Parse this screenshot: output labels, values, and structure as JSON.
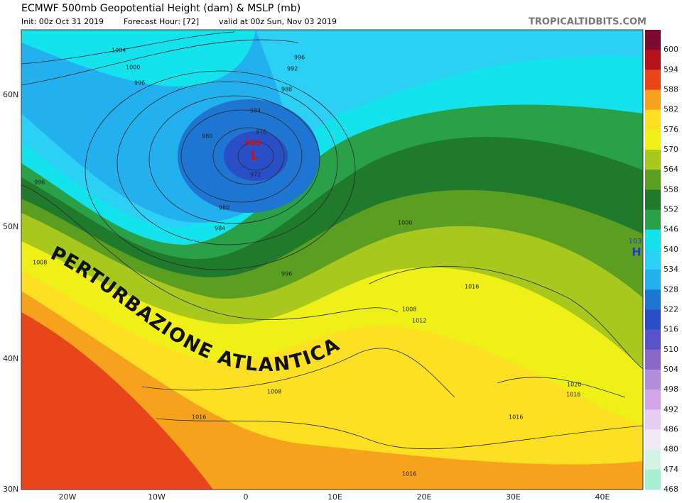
{
  "header": {
    "title": "ECMWF 500mb Geopotential Height (dam) & MSLP (mb)",
    "init": "Init: 00z Oct 31 2019",
    "forecast_hour": "Forecast Hour: [72]",
    "valid": "valid at 00z Sun, Nov 03 2019",
    "site": "TROPICALTIDBITS.COM"
  },
  "latitude_labels": [
    "60N",
    "50N",
    "40N",
    "30N"
  ],
  "longitude_labels": [
    "20W",
    "10W",
    "0",
    "10E",
    "20E",
    "30E",
    "40E"
  ],
  "annotation": "PERTURBAZIONE ATLANTICA",
  "low": {
    "pressure": "968",
    "symbol": "L"
  },
  "high": {
    "pressure": "103",
    "symbol": "H"
  },
  "isobar_labels": [
    "1004",
    "1000",
    "996",
    "996",
    "992",
    "988",
    "984",
    "980",
    "976",
    "972",
    "980",
    "984",
    "996",
    "1008",
    "996",
    "1000",
    "1008",
    "1016",
    "1012",
    "1008",
    "1016",
    "1020",
    "1016",
    "1016",
    "1016"
  ],
  "legend": [
    {
      "value": 600,
      "color": "#7d0a30"
    },
    {
      "value": 594,
      "color": "#b4121c"
    },
    {
      "value": 588,
      "color": "#e8461a"
    },
    {
      "value": 582,
      "color": "#f7a21c"
    },
    {
      "value": 576,
      "color": "#fde024"
    },
    {
      "value": 570,
      "color": "#eef018"
    },
    {
      "value": 564,
      "color": "#a8c81e"
    },
    {
      "value": 558,
      "color": "#5c9e22"
    },
    {
      "value": 552,
      "color": "#1f7a2c"
    },
    {
      "value": 546,
      "color": "#2aa048"
    },
    {
      "value": 540,
      "color": "#14e2ec"
    },
    {
      "value": 534,
      "color": "#2cd0f4"
    },
    {
      "value": 528,
      "color": "#22b0ee"
    },
    {
      "value": 522,
      "color": "#1e76d2"
    },
    {
      "value": 516,
      "color": "#2a4ec6"
    },
    {
      "value": 510,
      "color": "#5a52c8"
    },
    {
      "value": 504,
      "color": "#8a68c8"
    },
    {
      "value": 498,
      "color": "#b48cdc"
    },
    {
      "value": 492,
      "color": "#d4a4e8"
    },
    {
      "value": 486,
      "color": "#e8cef2"
    },
    {
      "value": 480,
      "color": "#f2e8f6"
    },
    {
      "value": 474,
      "color": "#d4f2e6"
    },
    {
      "value": 468,
      "color": "#a8eed2"
    }
  ]
}
